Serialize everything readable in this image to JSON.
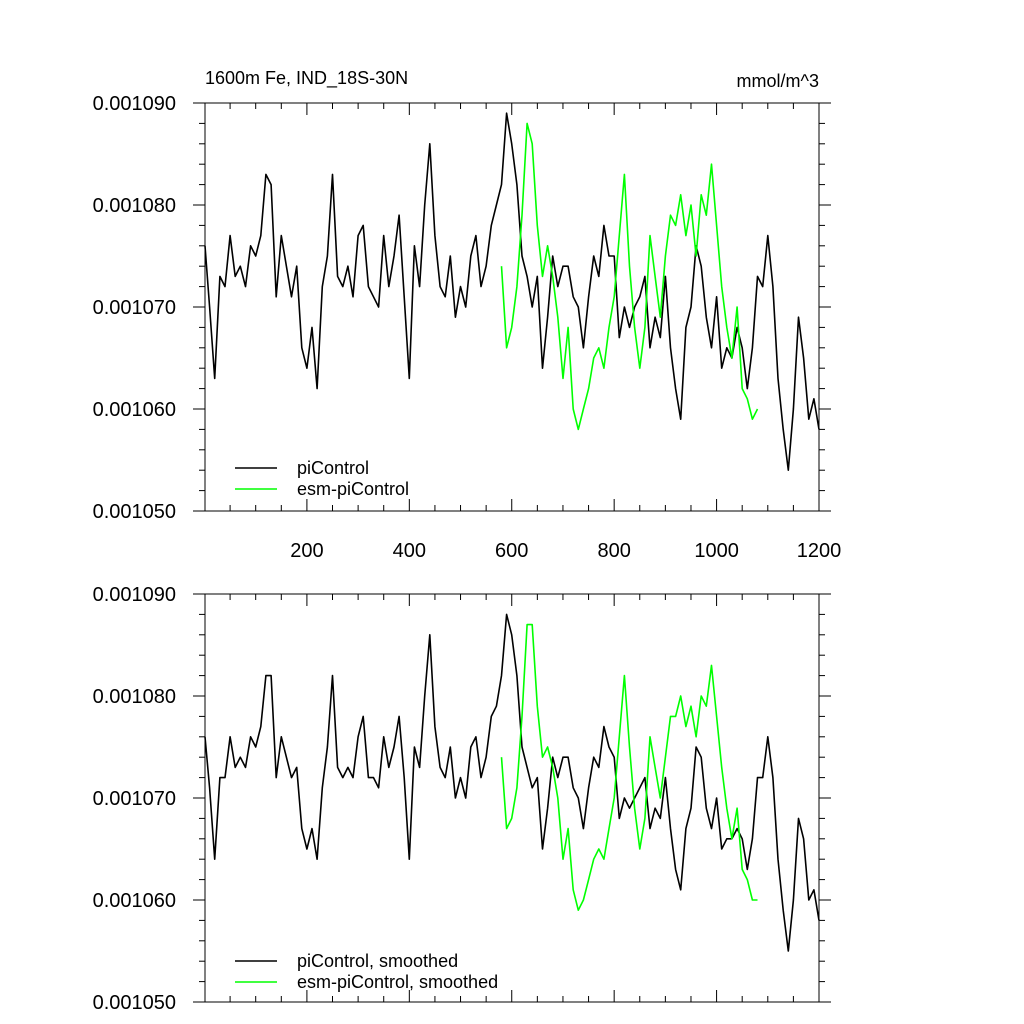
{
  "chart_data": [
    {
      "type": "line",
      "title": "1600m Fe, IND_18S-30N",
      "units": "mmol/m^3",
      "xlabel": "",
      "ylabel": "",
      "xlim": [
        1,
        1200
      ],
      "ylim": [
        0.00105,
        0.00109
      ],
      "xticks": [
        200,
        400,
        600,
        800,
        1000,
        1200
      ],
      "ytick_labels": [
        "0.001050",
        "0.001060",
        "0.001070",
        "0.001080",
        "0.001090"
      ],
      "legend_position": "bottom-left",
      "series": [
        {
          "name": "piControl",
          "color": "#000000",
          "x": [
            1,
            10,
            20,
            30,
            40,
            50,
            60,
            70,
            80,
            90,
            100,
            110,
            120,
            130,
            140,
            150,
            160,
            170,
            180,
            190,
            200,
            210,
            220,
            230,
            240,
            250,
            260,
            270,
            280,
            290,
            300,
            310,
            320,
            330,
            340,
            350,
            360,
            370,
            380,
            390,
            400,
            410,
            420,
            430,
            440,
            450,
            460,
            470,
            480,
            490,
            500,
            510,
            520,
            530,
            540,
            550,
            560,
            570,
            580,
            590,
            600,
            610,
            620,
            630,
            640,
            650,
            660,
            670,
            680,
            690,
            700,
            710,
            720,
            730,
            740,
            750,
            760,
            770,
            780,
            790,
            800,
            810,
            820,
            830,
            840,
            850,
            860,
            870,
            880,
            890,
            900,
            910,
            920,
            930,
            940,
            950,
            960,
            970,
            980,
            990,
            1000,
            1010,
            1020,
            1030,
            1040,
            1050,
            1060,
            1070,
            1080,
            1090,
            1100,
            1110,
            1120,
            1130,
            1140,
            1150,
            1160,
            1170,
            1180,
            1190,
            1200
          ],
          "y": [
            0.001076,
            0.00107,
            0.001063,
            0.001073,
            0.001072,
            0.001077,
            0.001073,
            0.001074,
            0.001072,
            0.001076,
            0.001075,
            0.001077,
            0.001083,
            0.001082,
            0.001071,
            0.001077,
            0.001074,
            0.001071,
            0.001074,
            0.001066,
            0.001064,
            0.001068,
            0.001062,
            0.001072,
            0.001075,
            0.001083,
            0.001073,
            0.001072,
            0.001074,
            0.001071,
            0.001077,
            0.001078,
            0.001072,
            0.001071,
            0.00107,
            0.001077,
            0.001072,
            0.001075,
            0.001079,
            0.001071,
            0.001063,
            0.001076,
            0.001072,
            0.00108,
            0.001086,
            0.001077,
            0.001072,
            0.001071,
            0.001075,
            0.001069,
            0.001072,
            0.00107,
            0.001075,
            0.001077,
            0.001072,
            0.001074,
            0.001078,
            0.00108,
            0.001082,
            0.001089,
            0.001086,
            0.001082,
            0.001075,
            0.001073,
            0.00107,
            0.001073,
            0.001064,
            0.001069,
            0.001075,
            0.001072,
            0.001074,
            0.001074,
            0.001071,
            0.00107,
            0.001066,
            0.001071,
            0.001075,
            0.001073,
            0.001078,
            0.001075,
            0.001075,
            0.001067,
            0.00107,
            0.001068,
            0.00107,
            0.001071,
            0.001073,
            0.001066,
            0.001069,
            0.001067,
            0.001073,
            0.001066,
            0.001062,
            0.001059,
            0.001068,
            0.00107,
            0.001076,
            0.001074,
            0.001069,
            0.001066,
            0.001071,
            0.001064,
            0.001066,
            0.001065,
            0.001068,
            0.001066,
            0.001062,
            0.001066,
            0.001073,
            0.001072,
            0.001077,
            0.001072,
            0.001063,
            0.001058,
            0.001054,
            0.00106,
            0.001069,
            0.001065,
            0.001059,
            0.001061,
            0.001058
          ]
        },
        {
          "name": "esm-piControl",
          "color": "#00ff00",
          "x": [
            580,
            590,
            600,
            610,
            620,
            630,
            640,
            650,
            660,
            670,
            680,
            690,
            700,
            710,
            720,
            730,
            740,
            750,
            760,
            770,
            780,
            790,
            800,
            810,
            820,
            830,
            840,
            850,
            860,
            870,
            880,
            890,
            900,
            910,
            920,
            930,
            940,
            950,
            960,
            970,
            980,
            990,
            1000,
            1010,
            1020,
            1030,
            1040,
            1050,
            1060,
            1070,
            1080
          ],
          "y": [
            0.001074,
            0.001066,
            0.001068,
            0.001072,
            0.001079,
            0.001088,
            0.001086,
            0.001078,
            0.001073,
            0.001076,
            0.001073,
            0.001069,
            0.001063,
            0.001068,
            0.00106,
            0.001058,
            0.00106,
            0.001062,
            0.001065,
            0.001066,
            0.001064,
            0.001068,
            0.001071,
            0.001077,
            0.001083,
            0.001074,
            0.001068,
            0.001064,
            0.001068,
            0.001077,
            0.001073,
            0.001069,
            0.001075,
            0.001079,
            0.001078,
            0.001081,
            0.001077,
            0.00108,
            0.001075,
            0.001081,
            0.001079,
            0.001084,
            0.001078,
            0.001072,
            0.001068,
            0.001065,
            0.00107,
            0.001062,
            0.001061,
            0.001059,
            0.00106
          ]
        }
      ]
    },
    {
      "type": "line",
      "title": "",
      "xlabel": "",
      "ylabel": "",
      "xlim": [
        1,
        1200
      ],
      "ylim": [
        0.00105,
        0.00109
      ],
      "ytick_labels": [
        "0.001050",
        "0.001060",
        "0.001070",
        "0.001080",
        "0.001090"
      ],
      "legend_position": "bottom-left",
      "series": [
        {
          "name": "piControl, smoothed",
          "color": "#000000",
          "x": [
            1,
            10,
            20,
            30,
            40,
            50,
            60,
            70,
            80,
            90,
            100,
            110,
            120,
            130,
            140,
            150,
            160,
            170,
            180,
            190,
            200,
            210,
            220,
            230,
            240,
            250,
            260,
            270,
            280,
            290,
            300,
            310,
            320,
            330,
            340,
            350,
            360,
            370,
            380,
            390,
            400,
            410,
            420,
            430,
            440,
            450,
            460,
            470,
            480,
            490,
            500,
            510,
            520,
            530,
            540,
            550,
            560,
            570,
            580,
            590,
            600,
            610,
            620,
            630,
            640,
            650,
            660,
            670,
            680,
            690,
            700,
            710,
            720,
            730,
            740,
            750,
            760,
            770,
            780,
            790,
            800,
            810,
            820,
            830,
            840,
            850,
            860,
            870,
            880,
            890,
            900,
            910,
            920,
            930,
            940,
            950,
            960,
            970,
            980,
            990,
            1000,
            1010,
            1020,
            1030,
            1040,
            1050,
            1060,
            1070,
            1080,
            1090,
            1100,
            1110,
            1120,
            1130,
            1140,
            1150,
            1160,
            1170,
            1180,
            1190,
            1200
          ],
          "y": [
            0.001076,
            0.001071,
            0.001064,
            0.001072,
            0.001072,
            0.001076,
            0.001073,
            0.001074,
            0.001073,
            0.001076,
            0.001075,
            0.001077,
            0.001082,
            0.001082,
            0.001072,
            0.001076,
            0.001074,
            0.001072,
            0.001073,
            0.001067,
            0.001065,
            0.001067,
            0.001064,
            0.001071,
            0.001075,
            0.001082,
            0.001073,
            0.001072,
            0.001073,
            0.001072,
            0.001076,
            0.001078,
            0.001072,
            0.001072,
            0.001071,
            0.001076,
            0.001073,
            0.001075,
            0.001078,
            0.001072,
            0.001064,
            0.001075,
            0.001073,
            0.00108,
            0.001086,
            0.001077,
            0.001073,
            0.001072,
            0.001075,
            0.00107,
            0.001072,
            0.00107,
            0.001075,
            0.001076,
            0.001072,
            0.001074,
            0.001078,
            0.001079,
            0.001082,
            0.001088,
            0.001086,
            0.001082,
            0.001075,
            0.001073,
            0.001071,
            0.001072,
            0.001065,
            0.001069,
            0.001074,
            0.001072,
            0.001074,
            0.001074,
            0.001071,
            0.00107,
            0.001067,
            0.001071,
            0.001074,
            0.001073,
            0.001077,
            0.001075,
            0.001074,
            0.001068,
            0.00107,
            0.001069,
            0.00107,
            0.001071,
            0.001072,
            0.001067,
            0.001069,
            0.001068,
            0.001072,
            0.001067,
            0.001063,
            0.001061,
            0.001067,
            0.001069,
            0.001075,
            0.001074,
            0.001069,
            0.001067,
            0.00107,
            0.001065,
            0.001066,
            0.001066,
            0.001067,
            0.001066,
            0.001063,
            0.001066,
            0.001072,
            0.001072,
            0.001076,
            0.001072,
            0.001064,
            0.001059,
            0.001055,
            0.00106,
            0.001068,
            0.001066,
            0.00106,
            0.001061,
            0.001058
          ]
        },
        {
          "name": "esm-piControl, smoothed",
          "color": "#00ff00",
          "x": [
            580,
            590,
            600,
            610,
            620,
            630,
            640,
            650,
            660,
            670,
            680,
            690,
            700,
            710,
            720,
            730,
            740,
            750,
            760,
            770,
            780,
            790,
            800,
            810,
            820,
            830,
            840,
            850,
            860,
            870,
            880,
            890,
            900,
            910,
            920,
            930,
            940,
            950,
            960,
            970,
            980,
            990,
            1000,
            1010,
            1020,
            1030,
            1040,
            1050,
            1060,
            1070,
            1080
          ],
          "y": [
            0.001074,
            0.001067,
            0.001068,
            0.001071,
            0.001078,
            0.001087,
            0.001087,
            0.001079,
            0.001074,
            0.001075,
            0.001073,
            0.00107,
            0.001064,
            0.001067,
            0.001061,
            0.001059,
            0.00106,
            0.001062,
            0.001064,
            0.001065,
            0.001064,
            0.001067,
            0.00107,
            0.001076,
            0.001082,
            0.001075,
            0.001069,
            0.001065,
            0.001068,
            0.001076,
            0.001073,
            0.00107,
            0.001074,
            0.001078,
            0.001078,
            0.00108,
            0.001077,
            0.001079,
            0.001076,
            0.00108,
            0.001079,
            0.001083,
            0.001078,
            0.001073,
            0.001069,
            0.001066,
            0.001069,
            0.001063,
            0.001062,
            0.00106,
            0.00106
          ]
        }
      ]
    }
  ]
}
